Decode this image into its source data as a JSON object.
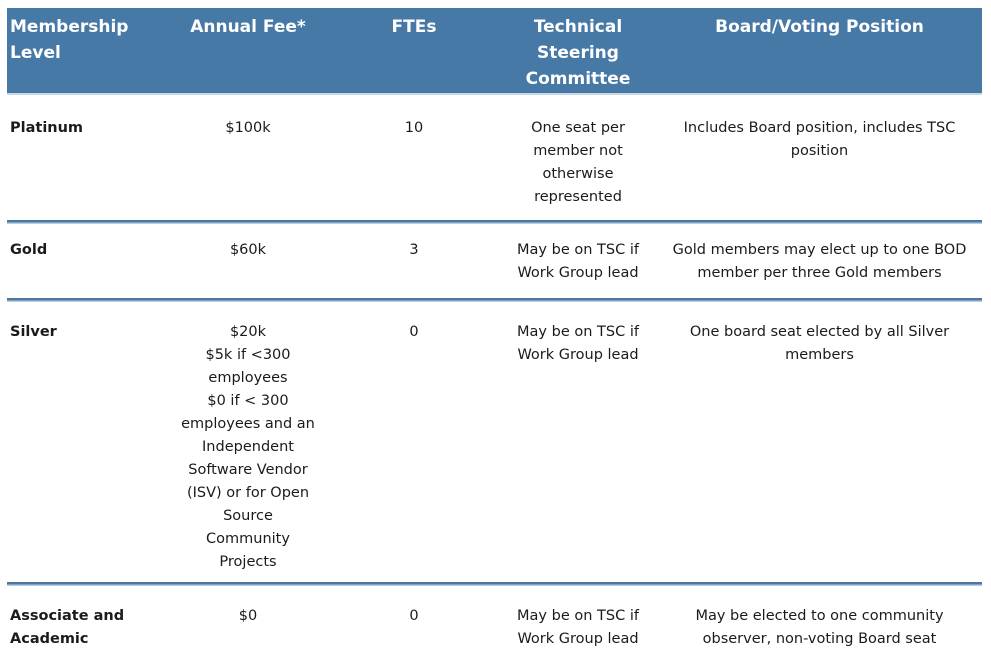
{
  "header": {
    "membership_level": "Membership\nLevel",
    "annual_fee": "Annual Fee*",
    "ftes": "FTEs",
    "tsc": "Technical\nSteering\nCommittee",
    "board": "Board/Voting Position"
  },
  "rows": [
    {
      "level": "Platinum",
      "fee": "$100k",
      "ftes": "10",
      "tsc": "One seat per\nmember not\notherwise\nrepresented",
      "board": "Includes Board position, includes TSC\nposition"
    },
    {
      "level": "Gold",
      "fee": "$60k",
      "ftes": "3",
      "tsc": "May be on TSC if\nWork Group lead",
      "board": "Gold members may elect up to one BOD\nmember per three Gold members"
    },
    {
      "level": "Silver",
      "fee": "$20k\n$5k if <300\nemployees\n$0 if < 300\nemployees and an\nIndependent\nSoftware Vendor\n(ISV) or for Open\nSource\nCommunity\nProjects",
      "ftes": "0",
      "tsc": "May be on TSC if\nWork Group lead",
      "board": "One board seat elected by all Silver\nmembers"
    },
    {
      "level": "Associate and\nAcademic",
      "fee": "$0",
      "ftes": "0",
      "tsc": "May be on TSC if\nWork Group lead",
      "board": "May be elected to one community\nobserver, non-voting Board seat"
    }
  ],
  "colors": {
    "header_bg": "#4779a7",
    "header_text": "#ffffff",
    "divider_dark": "#4d77a2",
    "divider_light": "#b7cde0",
    "header_underline": "#c9d9e8",
    "body_text": "#1b1b1b"
  }
}
